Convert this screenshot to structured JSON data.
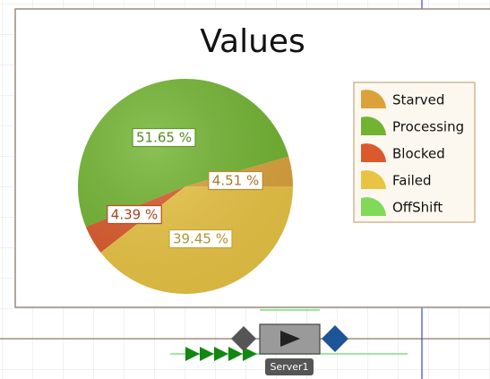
{
  "chart_data": {
    "type": "pie",
    "title": "Values",
    "categories": [
      "Starved",
      "Processing",
      "Blocked",
      "Failed",
      "OffShift"
    ],
    "values": [
      4.51,
      51.65,
      4.39,
      39.45,
      0
    ],
    "value_labels": [
      "4.51 %",
      "51.65 %",
      "4.39 %",
      "39.45 %",
      null
    ],
    "colors": [
      "#dba23c",
      "#72b431",
      "#db5a2c",
      "#e9c444",
      "#80da58"
    ],
    "legend": "right"
  },
  "canvas": {
    "object_label": "Server1"
  }
}
